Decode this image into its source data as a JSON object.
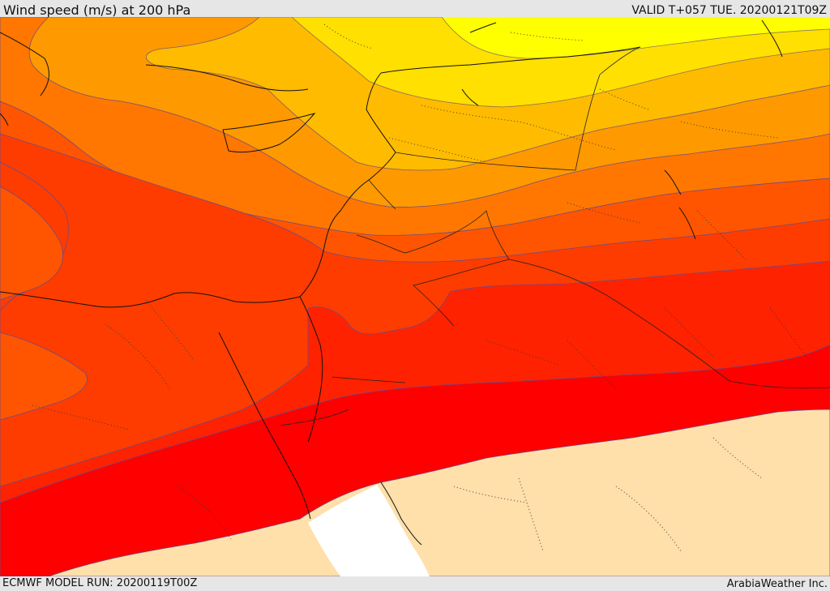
{
  "header": {
    "title": "Wind speed (m/s) at 200 hPa",
    "valid_time": "VALID T+057 TUE. 20200121T09Z"
  },
  "footer": {
    "model_run": "ECMWF MODEL RUN: 20200119T00Z",
    "credit": "ArabiaWeather Inc."
  },
  "map": {
    "variable": "wind speed",
    "level": "200 hPa",
    "colors": {
      "lowest": "#ffff00",
      "band_2": "#ffe000",
      "band_3": "#ffbb00",
      "band_4": "#ff9900",
      "band_5": "#ff7700",
      "band_6": "#ff5500",
      "band_7": "#ff3c00",
      "band_8": "#ff2200",
      "band_9": "#ff0000",
      "below_threshold": "#ffdfaa",
      "no_data": "#ffffff"
    }
  }
}
